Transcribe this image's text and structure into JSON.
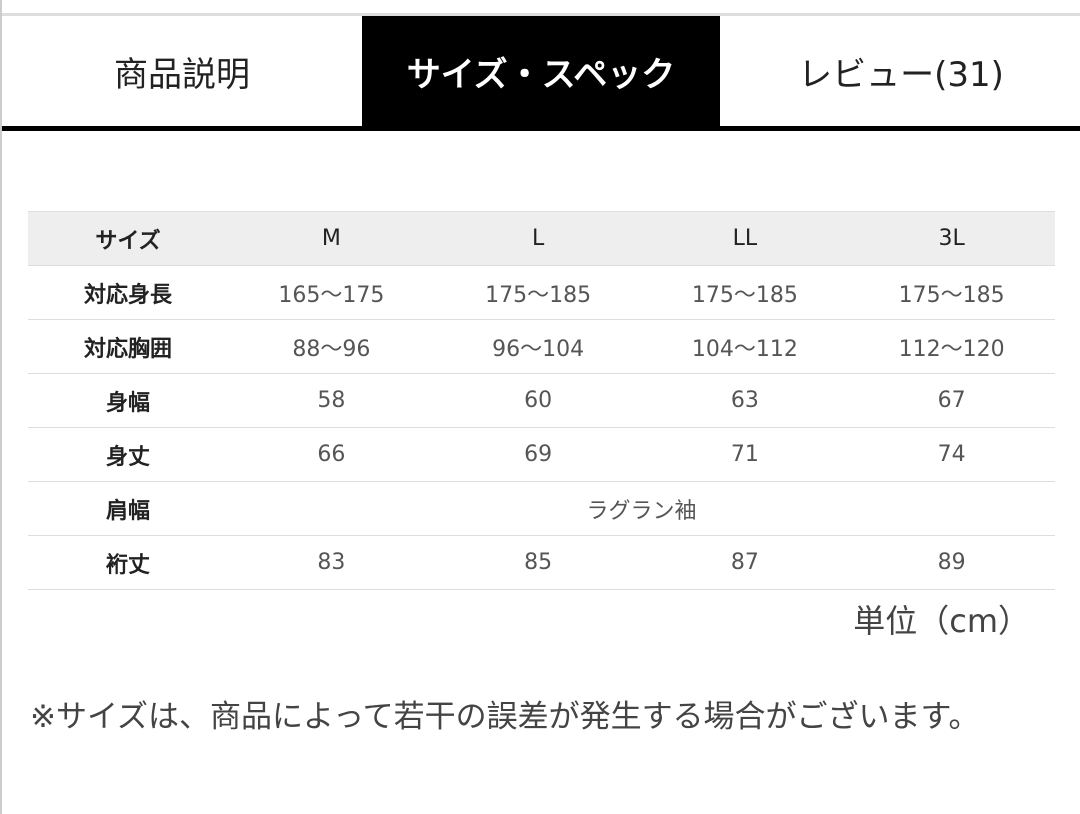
{
  "tabs": [
    {
      "label": "商品説明",
      "active": false
    },
    {
      "label": "サイズ・スペック",
      "active": true
    },
    {
      "label": "レビュー(31)",
      "active": false
    }
  ],
  "table": {
    "header": {
      "label": "サイズ",
      "cols": [
        "M",
        "L",
        "LL",
        "3L"
      ]
    },
    "rows": [
      {
        "label": "対応身長",
        "cells": [
          "165〜175",
          "175〜185",
          "175〜185",
          "175〜185"
        ]
      },
      {
        "label": "対応胸囲",
        "cells": [
          "88〜96",
          "96〜104",
          "104〜112",
          "112〜120"
        ]
      },
      {
        "label": "身幅",
        "cells": [
          "58",
          "60",
          "63",
          "67"
        ]
      },
      {
        "label": "身丈",
        "cells": [
          "66",
          "69",
          "71",
          "74"
        ]
      },
      {
        "label": "肩幅",
        "merged": "ラグラン袖"
      },
      {
        "label": "裄丈",
        "cells": [
          "83",
          "85",
          "87",
          "89"
        ]
      }
    ]
  },
  "unit": "単位（cm）",
  "note": "※サイズは、商品によって若干の誤差が発生する場合がございます。"
}
